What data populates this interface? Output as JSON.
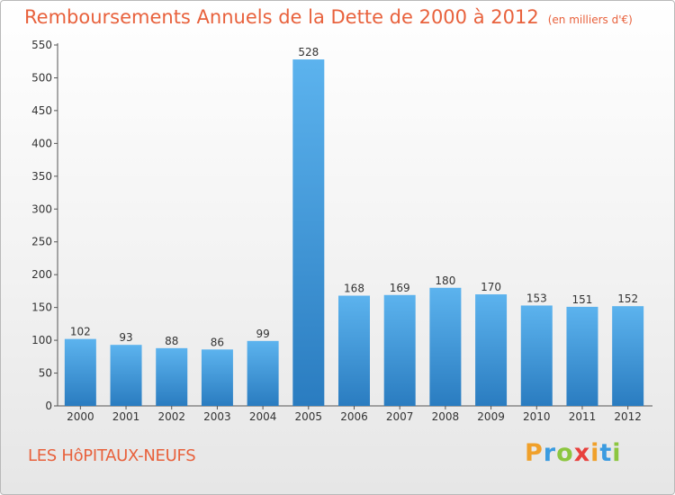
{
  "header": {
    "title": "Remboursements Annuels de la Dette de 2000 à 2012",
    "unit": "(en milliers d'€)"
  },
  "footer": {
    "commune": "LES HôPITAUX-NEUFS",
    "brand_letters": [
      "P",
      "r",
      "o",
      "x",
      "i",
      "t",
      "i"
    ],
    "brand_colors": [
      "#f0a02a",
      "#3a9be0",
      "#8cc63f",
      "#e8403c",
      "#f0a02a",
      "#3a9be0",
      "#8cc63f"
    ]
  },
  "chart_data": {
    "type": "bar",
    "categories": [
      "2000",
      "2001",
      "2002",
      "2003",
      "2004",
      "2005",
      "2006",
      "2007",
      "2008",
      "2009",
      "2010",
      "2011",
      "2012"
    ],
    "values": [
      102,
      93,
      88,
      86,
      99,
      528,
      168,
      169,
      180,
      170,
      153,
      151,
      152
    ],
    "ylim": [
      0,
      550
    ],
    "yticks": [
      0,
      50,
      100,
      150,
      200,
      250,
      300,
      350,
      400,
      450,
      500,
      550
    ],
    "grid": false,
    "bar_color": "#3d95d8"
  }
}
